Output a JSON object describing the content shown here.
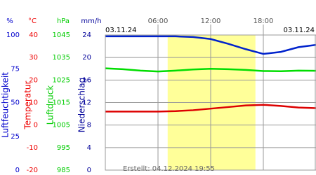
{
  "chart_data": {
    "type": "line",
    "x": [
      0,
      2,
      4,
      6,
      8,
      10,
      12,
      14,
      16,
      18,
      20,
      22,
      24
    ],
    "xlim": [
      0,
      24
    ],
    "xticks": [
      {
        "value": 6,
        "label": "06:00"
      },
      {
        "value": 12,
        "label": "12:00"
      },
      {
        "value": 18,
        "label": "18:00"
      }
    ],
    "daylight": [
      7.1,
      17.1
    ],
    "date_left": "03.11.24",
    "date_right": "03.11.24",
    "created": "Erstellt: 04.12.2024 19:55",
    "axes": [
      {
        "unit": "%",
        "title": "Luftfeuchtigkeit",
        "color": "#0000cc",
        "ylim": [
          0,
          100
        ],
        "yticks": [
          0,
          25,
          50,
          75,
          100
        ]
      },
      {
        "unit": "°C",
        "title": "Temperatur",
        "color": "#ee0000",
        "ylim": [
          -20,
          40
        ],
        "yticks": [
          -20,
          -10,
          0,
          10,
          20,
          30,
          40
        ]
      },
      {
        "unit": "hPa",
        "title": "Luftdruck",
        "color": "#00cc00",
        "ylim": [
          985,
          1045
        ],
        "yticks": [
          985,
          995,
          1005,
          1015,
          1025,
          1035,
          1045
        ]
      },
      {
        "unit": "mm/h",
        "title": "Niederschlag",
        "color": "#000099",
        "ylim": [
          0,
          24
        ],
        "yticks": [
          0,
          4,
          8,
          12,
          16,
          20,
          24
        ]
      }
    ],
    "series": [
      {
        "axis": "%",
        "color": "#0022cc",
        "values": [
          99,
          99,
          99,
          99,
          99,
          98.5,
          97,
          93.5,
          89.5,
          86,
          87.5,
          91,
          92.7
        ]
      },
      {
        "axis": "°C",
        "color": "#dd0000",
        "values": [
          6,
          6,
          6,
          6,
          6.2,
          6.6,
          7.3,
          8,
          8.7,
          9,
          8.5,
          7.8,
          7.5
        ]
      },
      {
        "axis": "hPa",
        "color": "#00dd00",
        "values": [
          1030.2,
          1029.8,
          1029.2,
          1028.8,
          1029.2,
          1029.7,
          1030,
          1029.8,
          1029.5,
          1029,
          1028.9,
          1029.2,
          1029.1
        ]
      }
    ]
  }
}
